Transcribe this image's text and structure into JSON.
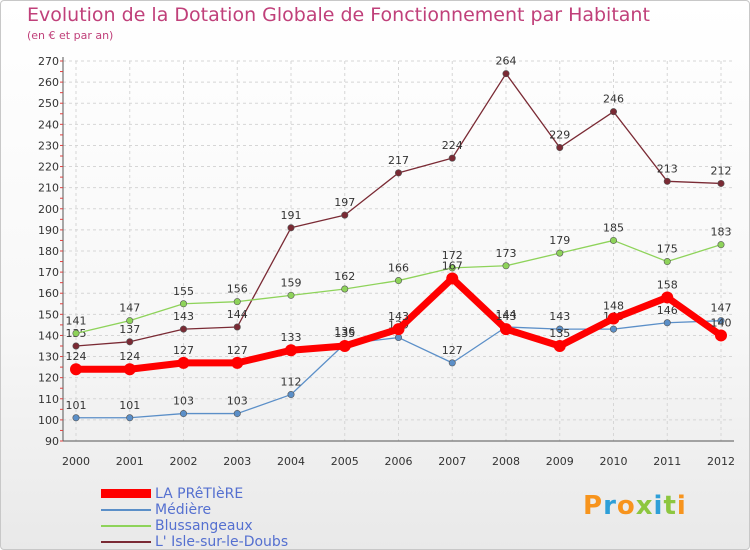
{
  "chart_data": {
    "type": "line",
    "title": "Evolution de la Dotation Globale de Fonctionnement par Habitant",
    "subtitle": "(en € et par an)",
    "categories": [
      "2000",
      "2001",
      "2002",
      "2003",
      "2004",
      "2005",
      "2006",
      "2007",
      "2008",
      "2009",
      "2010",
      "2011",
      "2012"
    ],
    "ylim": [
      90,
      270
    ],
    "yticks": [
      90,
      100,
      110,
      120,
      130,
      140,
      150,
      160,
      170,
      180,
      190,
      200,
      210,
      220,
      230,
      240,
      250,
      260,
      270
    ],
    "grid": true,
    "legend_position": "bottom-left",
    "series": [
      {
        "name": "L' Isle-sur-le-Doubs",
        "color": "#7a2a34",
        "values": [
          135,
          137,
          143,
          144,
          191,
          197,
          217,
          224,
          264,
          229,
          246,
          213,
          212
        ]
      },
      {
        "name": "Blussangeaux",
        "color": "#8ed35a",
        "values": [
          141,
          147,
          155,
          156,
          159,
          162,
          166,
          172,
          173,
          179,
          185,
          175,
          183
        ]
      },
      {
        "name": "Médière",
        "color": "#5b8fc8",
        "values": [
          101,
          101,
          103,
          103,
          112,
          136,
          139,
          127,
          144,
          143,
          143,
          146,
          147
        ]
      },
      {
        "name": "LA PRêTIèRE",
        "color": "#ff0000",
        "values": [
          124,
          124,
          127,
          127,
          133,
          135,
          143,
          167,
          143,
          135,
          148,
          158,
          140
        ]
      }
    ]
  },
  "legend": {
    "items": [
      {
        "label": "LA PRêTIèRE",
        "color": "#ff0000"
      },
      {
        "label": "Médière",
        "color": "#5b8fc8"
      },
      {
        "label": "Blussangeaux",
        "color": "#8ed35a"
      },
      {
        "label": "L' Isle-sur-le-Doubs",
        "color": "#7a2a34"
      }
    ]
  },
  "brand": {
    "letters": [
      "P",
      "r",
      "o",
      "x",
      "i",
      "t",
      "i"
    ],
    "colors": [
      "#f7941d",
      "#2e9fd8",
      "#f7941d",
      "#8dc63f",
      "#2e9fd8",
      "#8dc63f",
      "#f7941d"
    ]
  }
}
